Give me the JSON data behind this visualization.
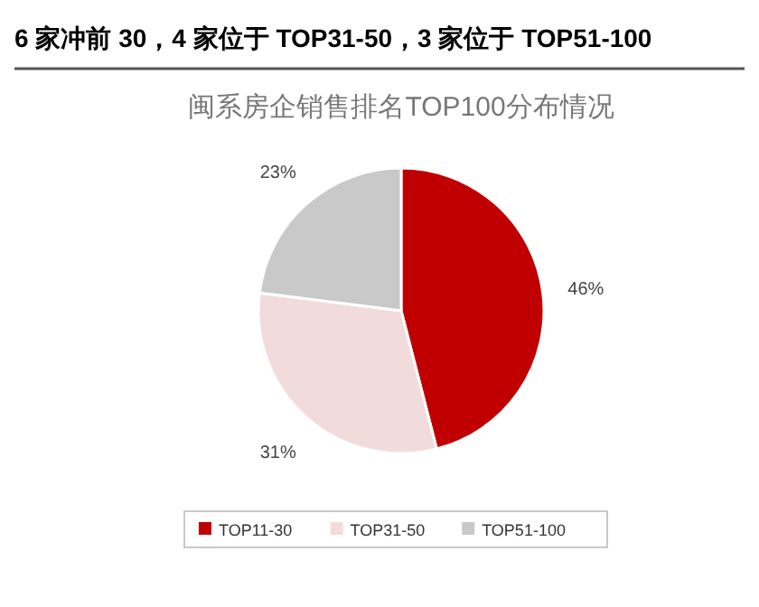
{
  "chart_data": {
    "type": "pie",
    "subtitle": "6 家冲前 30，4 家位于 TOP31-50，3 家位于 TOP51-100",
    "title": "闽系房企销售排名TOP100分布情况",
    "categories": [
      "TOP11-30",
      "TOP31-50",
      "TOP51-100"
    ],
    "values": [
      46,
      31,
      23
    ],
    "colors": [
      "#c00000",
      "#f2dcdb",
      "#c9c9c9"
    ],
    "value_labels": [
      "46%",
      "31%",
      "23%"
    ],
    "legend": "bottom"
  }
}
